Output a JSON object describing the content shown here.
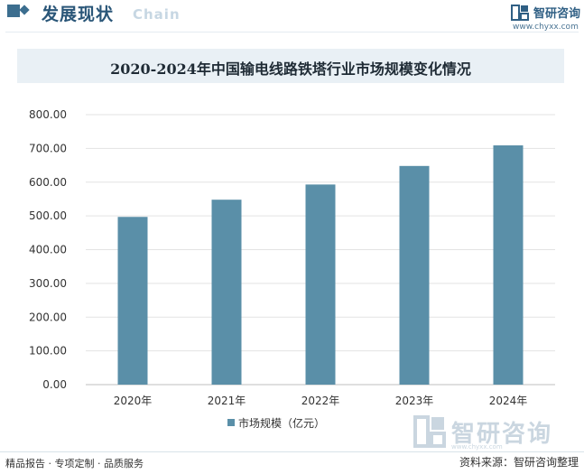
{
  "header": {
    "title": "发展现状",
    "subtitle": "Chain",
    "brand_name": "智研咨询",
    "brand_url": "www.chyxx.com"
  },
  "chart_data": {
    "type": "bar",
    "title": "2020-2024年中国输电线路铁塔行业市场规模变化情况",
    "categories": [
      "2020年",
      "2021年",
      "2022年",
      "2023年",
      "2024年"
    ],
    "series": [
      {
        "name": "市场规模（亿元）",
        "values": [
          497,
          548,
          593,
          648,
          709
        ]
      }
    ],
    "ylim": [
      0,
      800
    ],
    "yticks": [
      "0.00",
      "100.00",
      "200.00",
      "300.00",
      "400.00",
      "500.00",
      "600.00",
      "700.00",
      "800.00"
    ],
    "grid": true,
    "legend": "bottom-center",
    "bar_color": "#5a8fa8"
  },
  "watermark": {
    "name": "智研咨询",
    "url": "www.chyxx.com"
  },
  "footer": {
    "left": "精品报告 · 专项定制 · 品质服务",
    "right": "资料来源：智研咨询整理"
  }
}
